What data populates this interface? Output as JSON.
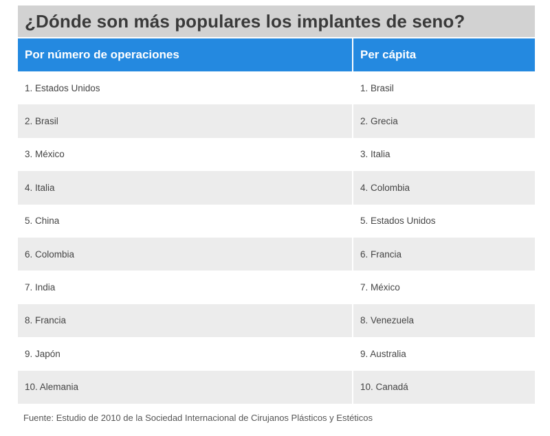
{
  "title": "¿Dónde son más populares los implantes de seno?",
  "columns": {
    "left": "Por número de operaciones",
    "right": "Per cápita"
  },
  "rows": [
    {
      "left": "1. Estados Unidos",
      "right": "1. Brasil"
    },
    {
      "left": "2. Brasil",
      "right": "2. Grecia"
    },
    {
      "left": "3. México",
      "right": "3. Italia"
    },
    {
      "left": "4. Italia",
      "right": "4. Colombia"
    },
    {
      "left": "5. China",
      "right": "5. Estados Unidos"
    },
    {
      "left": "6. Colombia",
      "right": "6. Francia"
    },
    {
      "left": "7. India",
      "right": "7. México"
    },
    {
      "left": "8. Francia",
      "right": "8. Venezuela"
    },
    {
      "left": "9. Japón",
      "right": "9. Australia"
    },
    {
      "left": "10. Alemania",
      "right": "10. Canadá"
    }
  ],
  "footer": "Fuente: Estudio de 2010 de la Sociedad Internacional de Cirujanos Plásticos y Estéticos",
  "colors": {
    "header_blue": "#2489e0",
    "title_bg": "#d2d2d2",
    "row_shade": "#ececec"
  }
}
